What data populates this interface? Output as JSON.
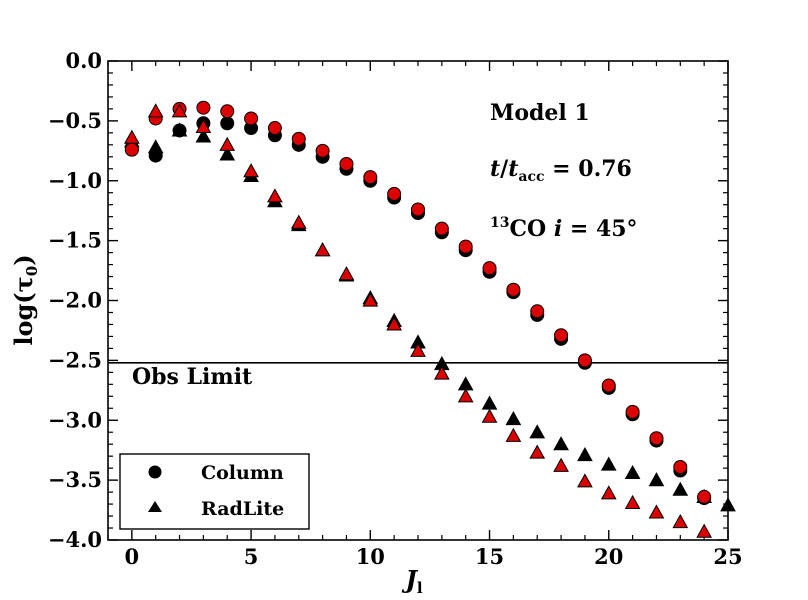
{
  "chart_data": {
    "type": "scatter",
    "xlabel": "J",
    "xlabel_sub": "l",
    "ylabel": "log(τ",
    "ylabel_sub": "0",
    "ylabel_close": ")",
    "xlim": [
      -1,
      25
    ],
    "ylim": [
      -4.0,
      0.0
    ],
    "xticks": [
      0,
      5,
      10,
      15,
      20,
      25
    ],
    "xtick_labels": [
      "0",
      "5",
      "10",
      "15",
      "20",
      "25"
    ],
    "yticks": [
      0.0,
      -0.5,
      -1.0,
      -1.5,
      -2.0,
      -2.5,
      -3.0,
      -3.5,
      -4.0
    ],
    "ytick_labels": [
      "0.0",
      "−0.5",
      "−1.0",
      "−1.5",
      "−2.0",
      "−2.5",
      "−3.0",
      "−3.5",
      "−4.0"
    ],
    "obs_limit": {
      "value": -2.52,
      "label": "Obs Limit"
    },
    "annotations": {
      "line1": "Model 1",
      "line2_t": "t",
      "line2_slash": "/",
      "line2_tacc": "t",
      "line2_sub": "acc",
      "line2_value": " = 0.76",
      "line3_sup": "13",
      "line3_co": "CO ",
      "line3_i": "i",
      "line3_value": " = 45°"
    },
    "legend": {
      "position": "lower-left",
      "entries": [
        "Column",
        "RadLite"
      ]
    },
    "colors": {
      "black": "#000000",
      "red": "#dd0000"
    },
    "series": [
      {
        "name": "Column",
        "marker": "circle",
        "color": "black",
        "x": [
          0,
          1,
          2,
          3,
          4,
          5,
          6,
          7,
          8,
          9,
          10,
          11,
          12,
          13,
          14,
          15,
          16,
          17,
          18,
          19,
          20,
          21,
          22,
          23,
          24
        ],
        "y": [
          -0.74,
          -0.79,
          -0.58,
          -0.52,
          -0.52,
          -0.56,
          -0.62,
          -0.7,
          -0.8,
          -0.9,
          -1.0,
          -1.14,
          -1.27,
          -1.43,
          -1.58,
          -1.76,
          -1.93,
          -2.12,
          -2.32,
          -2.52,
          -2.73,
          -2.95,
          -3.17,
          -3.42,
          -3.65
        ]
      },
      {
        "name": "Column-red",
        "marker": "circle",
        "color": "red",
        "x": [
          0,
          1,
          2,
          3,
          4,
          5,
          6,
          7,
          8,
          9,
          10,
          11,
          12,
          13,
          14,
          15,
          16,
          17,
          18,
          19,
          20,
          21,
          22,
          23,
          24
        ],
        "y": [
          -0.74,
          -0.48,
          -0.4,
          -0.39,
          -0.42,
          -0.48,
          -0.56,
          -0.65,
          -0.75,
          -0.86,
          -0.97,
          -1.11,
          -1.24,
          -1.4,
          -1.55,
          -1.73,
          -1.91,
          -2.09,
          -2.29,
          -2.5,
          -2.71,
          -2.93,
          -3.15,
          -3.39,
          -3.64
        ]
      },
      {
        "name": "RadLite",
        "marker": "triangle",
        "color": "black",
        "x": [
          0,
          1,
          2,
          3,
          4,
          5,
          6,
          7,
          8,
          9,
          10,
          11,
          12,
          13,
          14,
          15,
          16,
          17,
          18,
          19,
          20,
          21,
          22,
          23,
          24,
          25
        ],
        "y": [
          -0.67,
          -0.72,
          -0.58,
          -0.63,
          -0.78,
          -0.96,
          -1.17,
          -1.37,
          -1.58,
          -1.79,
          -1.98,
          -2.17,
          -2.35,
          -2.53,
          -2.7,
          -2.86,
          -2.99,
          -3.1,
          -3.2,
          -3.29,
          -3.37,
          -3.44,
          -3.5,
          -3.58,
          -3.64,
          -3.71
        ]
      },
      {
        "name": "RadLite-red",
        "marker": "triangle",
        "color": "red",
        "x": [
          0,
          1,
          2,
          3,
          4,
          5,
          6,
          7,
          8,
          9,
          10,
          11,
          12,
          13,
          14,
          15,
          16,
          17,
          18,
          19,
          20,
          21,
          22,
          23,
          24
        ],
        "y": [
          -0.64,
          -0.42,
          -0.42,
          -0.55,
          -0.7,
          -0.92,
          -1.13,
          -1.35,
          -1.58,
          -1.78,
          -2.0,
          -2.2,
          -2.42,
          -2.61,
          -2.8,
          -2.97,
          -3.13,
          -3.27,
          -3.38,
          -3.51,
          -3.61,
          -3.69,
          -3.77,
          -3.85,
          -3.93
        ]
      }
    ]
  }
}
